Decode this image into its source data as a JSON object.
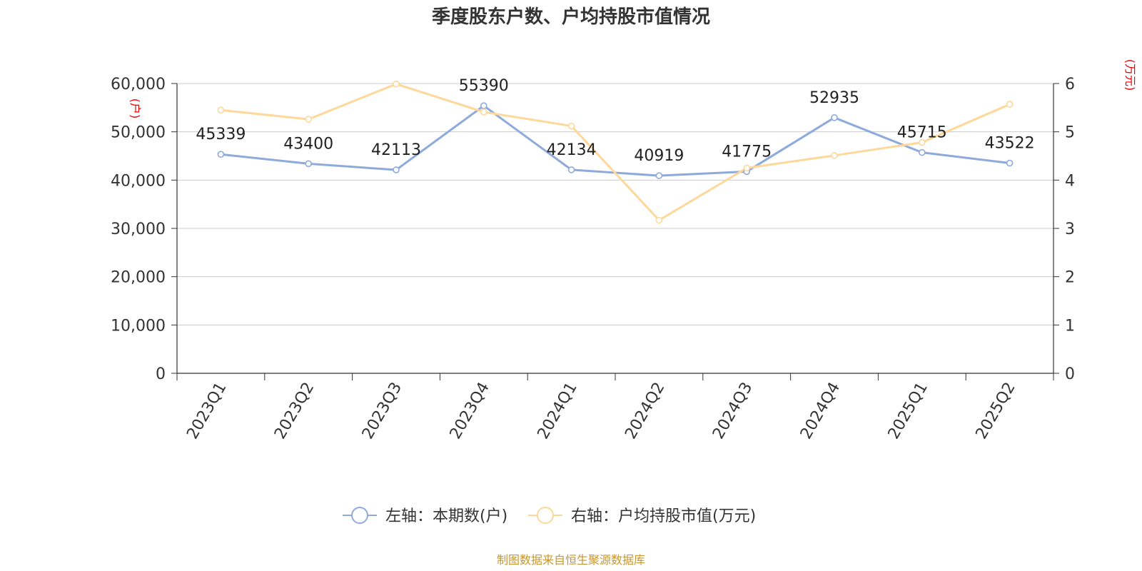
{
  "chart_data": {
    "type": "line",
    "title": "季度股东户数、户均持股市值情况",
    "categories": [
      "2023Q1",
      "2023Q2",
      "2023Q3",
      "2023Q4",
      "2024Q1",
      "2024Q2",
      "2024Q3",
      "2024Q4",
      "2025Q1",
      "2025Q2"
    ],
    "y_left": {
      "unit": "(户)",
      "ylim": [
        0,
        60000
      ],
      "ticks": [
        "0",
        "10,000",
        "20,000",
        "30,000",
        "40,000",
        "50,000",
        "60,000"
      ]
    },
    "y_right": {
      "unit": "(万元)",
      "ylim": [
        0,
        6
      ],
      "ticks": [
        "0",
        "1",
        "2",
        "3",
        "4",
        "5",
        "6"
      ]
    },
    "series": [
      {
        "name": "左轴：本期数(户)",
        "axis": "left",
        "color": "#8eaadb",
        "values": [
          45339,
          43400,
          42113,
          55390,
          42134,
          40919,
          41775,
          52935,
          45715,
          43522
        ],
        "labels": [
          "45339",
          "43400",
          "42113",
          "55390",
          "42134",
          "40919",
          "41775",
          "52935",
          "45715",
          "43522"
        ]
      },
      {
        "name": "右轴：户均持股市值(万元)",
        "axis": "right",
        "color": "#fdd89a",
        "values": [
          5.45,
          5.26,
          5.99,
          5.41,
          5.12,
          3.17,
          4.25,
          4.51,
          4.78,
          5.57
        ]
      }
    ],
    "grid": true,
    "legend": "bottom-center"
  },
  "source": "制图数据来自恒生聚源数据库"
}
